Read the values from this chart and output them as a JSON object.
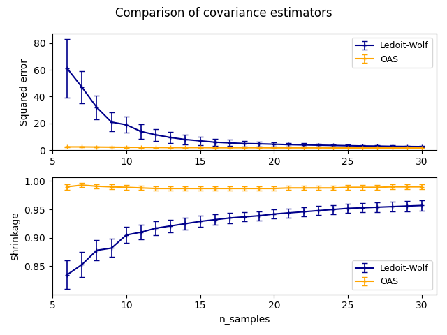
{
  "title": "Comparison of covariance estimators",
  "xlabel": "n_samples",
  "ylabel_top": "Squared error",
  "ylabel_bottom": "Shrinkage",
  "lw_color": "#00008B",
  "oas_color": "#FFA500",
  "legend_lw": "Ledoit-Wolf",
  "legend_oas": "OAS",
  "n_samples_range": [
    6,
    7,
    8,
    9,
    10,
    11,
    12,
    13,
    14,
    15,
    16,
    17,
    18,
    19,
    20,
    21,
    22,
    23,
    24,
    25,
    26,
    27,
    28,
    29,
    30
  ],
  "lw_error_mean": [
    61.0,
    47.0,
    32.0,
    21.0,
    19.0,
    14.0,
    11.5,
    9.5,
    8.0,
    7.0,
    6.0,
    5.5,
    5.0,
    4.8,
    4.5,
    4.2,
    4.0,
    3.8,
    3.6,
    3.4,
    3.2,
    3.1,
    2.9,
    2.8,
    2.7
  ],
  "lw_error_std": [
    22.0,
    12.0,
    9.0,
    7.0,
    6.0,
    5.5,
    4.5,
    4.0,
    3.5,
    3.0,
    2.5,
    2.2,
    2.0,
    1.8,
    1.5,
    1.3,
    1.1,
    1.0,
    0.9,
    0.85,
    0.8,
    0.75,
    0.7,
    0.65,
    0.6
  ],
  "oas_error_mean": [
    2.5,
    2.5,
    2.4,
    2.3,
    2.2,
    2.2,
    2.1,
    2.0,
    2.0,
    2.0,
    1.9,
    1.9,
    1.9,
    1.9,
    1.8,
    1.8,
    1.8,
    1.8,
    1.7,
    1.7,
    1.7,
    1.7,
    1.7,
    1.7,
    1.7
  ],
  "oas_error_std": [
    0.4,
    0.38,
    0.35,
    0.32,
    0.3,
    0.28,
    0.26,
    0.25,
    0.24,
    0.22,
    0.21,
    0.2,
    0.19,
    0.18,
    0.18,
    0.17,
    0.17,
    0.16,
    0.16,
    0.15,
    0.15,
    0.14,
    0.14,
    0.13,
    0.13
  ],
  "lw_shrink_mean": [
    0.835,
    0.853,
    0.878,
    0.882,
    0.905,
    0.91,
    0.917,
    0.921,
    0.925,
    0.929,
    0.932,
    0.935,
    0.937,
    0.939,
    0.942,
    0.944,
    0.946,
    0.948,
    0.95,
    0.952,
    0.953,
    0.954,
    0.955,
    0.956,
    0.957
  ],
  "lw_shrink_std": [
    0.025,
    0.022,
    0.018,
    0.016,
    0.014,
    0.013,
    0.012,
    0.011,
    0.01,
    0.01,
    0.009,
    0.009,
    0.008,
    0.008,
    0.008,
    0.008,
    0.008,
    0.008,
    0.008,
    0.008,
    0.008,
    0.009,
    0.009,
    0.009,
    0.009
  ],
  "oas_shrink_mean": [
    0.99,
    0.993,
    0.991,
    0.99,
    0.989,
    0.988,
    0.987,
    0.987,
    0.987,
    0.987,
    0.987,
    0.987,
    0.987,
    0.987,
    0.987,
    0.988,
    0.988,
    0.988,
    0.988,
    0.989,
    0.989,
    0.989,
    0.99,
    0.99,
    0.99
  ],
  "oas_shrink_std": [
    0.005,
    0.004,
    0.004,
    0.004,
    0.004,
    0.004,
    0.004,
    0.004,
    0.004,
    0.004,
    0.004,
    0.004,
    0.004,
    0.004,
    0.004,
    0.004,
    0.004,
    0.004,
    0.004,
    0.004,
    0.004,
    0.004,
    0.004,
    0.004,
    0.004
  ]
}
